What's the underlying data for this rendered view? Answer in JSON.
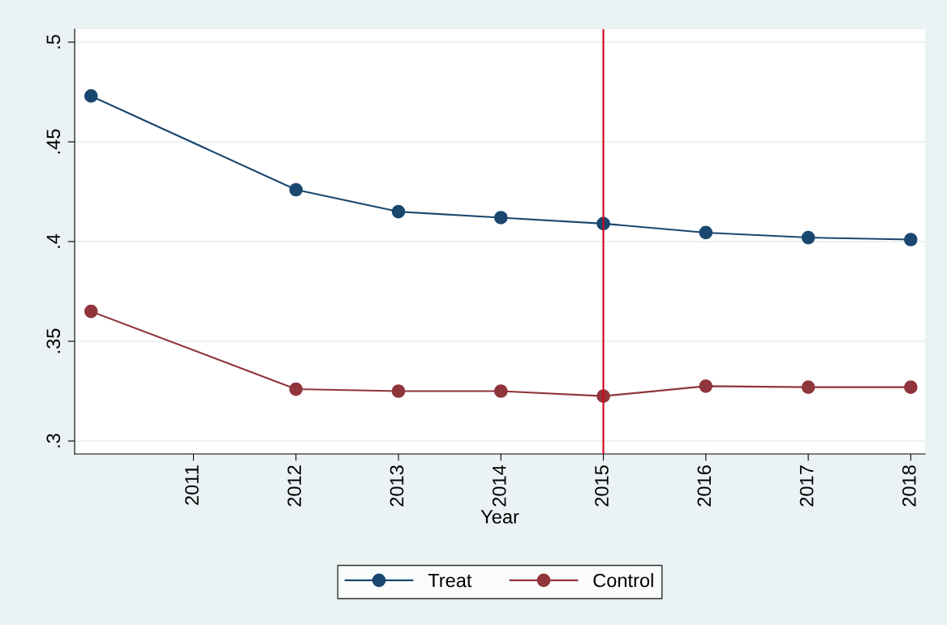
{
  "chart_data": {
    "type": "line",
    "xlabel": "Year",
    "x": [
      2010,
      2011,
      2012,
      2013,
      2014,
      2015,
      2016,
      2017,
      2018
    ],
    "series": [
      {
        "name": "Treat",
        "color": "#1a476f",
        "values": [
          0.473,
          null,
          0.426,
          0.415,
          0.412,
          0.409,
          0.4045,
          0.402,
          0.401
        ]
      },
      {
        "name": "Control",
        "color": "#90353b",
        "values": [
          0.365,
          null,
          0.326,
          0.325,
          0.325,
          0.3225,
          0.3275,
          0.327,
          0.327
        ]
      }
    ],
    "xlim": [
      2009.84,
      2018.14
    ],
    "xticks": [
      2011,
      2012,
      2013,
      2014,
      2015,
      2016,
      2017,
      2018
    ],
    "ylim": [
      0.2935,
      0.5065
    ],
    "yticks": [
      {
        "value": 0.3,
        "label": ".3"
      },
      {
        "value": 0.35,
        "label": ".35"
      },
      {
        "value": 0.4,
        "label": ".4"
      },
      {
        "value": 0.45,
        "label": ".45"
      },
      {
        "value": 0.5,
        "label": ".5"
      }
    ],
    "ref_lines": [
      {
        "axis": "x",
        "value": 2015,
        "color": "#d0021b"
      }
    ],
    "grid": "y",
    "legend": "bottom",
    "marker": "circle",
    "line_style": "solid"
  }
}
